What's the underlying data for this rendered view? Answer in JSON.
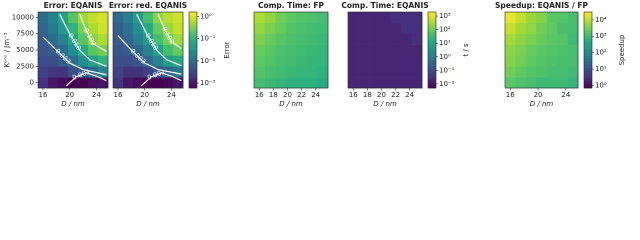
{
  "chart_data": [
    {
      "type": "heatmap",
      "title": "Error: EQANIS",
      "xlabel": "D / nm",
      "ylabel": "Kᵉⁿˢ / Jm⁻³",
      "colormap": "viridis",
      "log_color": true,
      "x": [
        16,
        17.5,
        19,
        20.5,
        22,
        23.5,
        25
      ],
      "y": [
        0,
        1667,
        3333,
        5000,
        6667,
        8333,
        10000
      ],
      "xlim": [
        15.25,
        25.75
      ],
      "ylim": [
        -833,
        10833
      ],
      "clim": [
        0.0006,
        1.6
      ],
      "xticks": [
        16,
        20,
        24
      ],
      "yticks": [
        0,
        2500,
        5000,
        7500,
        10000
      ],
      "values": [
        [
          0.002,
          0.001,
          0.0008,
          0.0006,
          0.0006,
          0.0008,
          0.001
        ],
        [
          0.003,
          0.002,
          0.002,
          0.004,
          0.006,
          0.01,
          0.02
        ],
        [
          0.004,
          0.004,
          0.006,
          0.01,
          0.03,
          0.06,
          0.1
        ],
        [
          0.005,
          0.006,
          0.01,
          0.03,
          0.08,
          0.2,
          0.3
        ],
        [
          0.006,
          0.01,
          0.02,
          0.06,
          0.2,
          0.4,
          0.6
        ],
        [
          0.008,
          0.015,
          0.04,
          0.1,
          0.3,
          0.6,
          0.9
        ],
        [
          0.01,
          0.02,
          0.06,
          0.2,
          0.5,
          0.8,
          1
        ]
      ],
      "contours": [
        {
          "level": {
            "value": 0.1,
            "label": "0.100"
          },
          "x": [
            21.5,
            22.5,
            23.5,
            25.5
          ],
          "y": [
            10500,
            8000,
            6000,
            4800
          ]
        },
        {
          "level": {
            "value": 0.01,
            "label": "0.010"
          },
          "x": [
            18.5,
            20,
            21.5,
            23,
            25.5
          ],
          "y": [
            10500,
            7500,
            5000,
            3500,
            2500
          ]
        },
        {
          "level": {
            "value": 0.003,
            "label": "0.003"
          },
          "x": [
            16,
            18,
            20,
            22,
            25.5
          ],
          "y": [
            7000,
            5000,
            3000,
            2000,
            1200
          ]
        },
        {
          "level": {
            "value": 0.001,
            "label": "0.001"
          },
          "x": [
            19.5,
            21,
            22.5,
            24,
            25.5
          ],
          "y": [
            -500,
            900,
            1500,
            1000,
            300
          ]
        }
      ]
    },
    {
      "type": "heatmap",
      "title": "Error: red. EQANIS",
      "xlabel": "D / nm",
      "colormap": "viridis",
      "log_color": true,
      "x": [
        16,
        17.5,
        19,
        20.5,
        22,
        23.5,
        25
      ],
      "y": [
        0,
        1667,
        3333,
        5000,
        6667,
        8333,
        10000
      ],
      "xlim": [
        15.25,
        25.75
      ],
      "ylim": [
        -833,
        10833
      ],
      "clim": [
        0.0006,
        1.6
      ],
      "xticks": [
        16,
        20,
        24
      ],
      "values": [
        [
          0.002,
          0.001,
          0.0008,
          0.0006,
          0.0006,
          0.0007,
          0.0009
        ],
        [
          0.003,
          0.002,
          0.002,
          0.003,
          0.005,
          0.008,
          0.015
        ],
        [
          0.004,
          0.004,
          0.005,
          0.009,
          0.02,
          0.05,
          0.08
        ],
        [
          0.005,
          0.006,
          0.009,
          0.02,
          0.06,
          0.15,
          0.25
        ],
        [
          0.006,
          0.009,
          0.02,
          0.05,
          0.15,
          0.3,
          0.5
        ],
        [
          0.007,
          0.012,
          0.03,
          0.08,
          0.25,
          0.5,
          0.8
        ],
        [
          0.009,
          0.018,
          0.05,
          0.15,
          0.4,
          0.7,
          0.9
        ]
      ],
      "contours": [
        {
          "level": {
            "value": 0.1,
            "label": "0.100"
          },
          "x": [
            22,
            23,
            24,
            25.5
          ],
          "y": [
            10500,
            8200,
            6300,
            5200
          ]
        },
        {
          "level": {
            "value": 0.01,
            "label": "0.010"
          },
          "x": [
            18.8,
            20.3,
            21.8,
            23.3,
            25.5
          ],
          "y": [
            10500,
            7500,
            5000,
            3500,
            2600
          ]
        },
        {
          "level": {
            "value": 0.003,
            "label": "0.003"
          },
          "x": [
            16,
            18,
            20,
            22,
            25.5
          ],
          "y": [
            7200,
            5000,
            3000,
            2000,
            1300
          ]
        },
        {
          "level": {
            "value": 0.001,
            "label": "0.001"
          },
          "x": [
            19.5,
            21,
            22.5,
            24,
            25.5
          ],
          "y": [
            -500,
            900,
            1500,
            1000,
            300
          ]
        }
      ],
      "colorbar": {
        "label": "Error",
        "ticks": [
          {
            "value": 1,
            "label": "10⁰"
          },
          {
            "value": 0.1,
            "label": "10⁻¹"
          },
          {
            "value": 0.01,
            "label": "10⁻²"
          },
          {
            "value": 0.001,
            "label": "10⁻³"
          }
        ]
      }
    },
    {
      "type": "heatmap",
      "title": "Comp. Time: FP",
      "xlabel": "D / nm",
      "colormap": "viridis",
      "log_color": true,
      "x": [
        16,
        17.5,
        19,
        20.5,
        22,
        23.5,
        25
      ],
      "y": [
        0,
        1667,
        3333,
        5000,
        6667,
        8333,
        10000
      ],
      "xlim": [
        15.25,
        25.75
      ],
      "ylim": [
        -833,
        10833
      ],
      "clim": [
        0.005,
        2000
      ],
      "xticks": [
        16,
        18,
        20,
        22,
        24
      ],
      "values": [
        [
          40,
          30,
          25,
          20,
          20,
          20,
          15
        ],
        [
          60,
          45,
          35,
          30,
          25,
          25,
          20
        ],
        [
          80,
          60,
          45,
          35,
          30,
          25,
          25
        ],
        [
          100,
          70,
          50,
          40,
          35,
          30,
          25
        ],
        [
          150,
          100,
          70,
          50,
          40,
          35,
          30
        ],
        [
          250,
          150,
          100,
          60,
          45,
          40,
          35
        ],
        [
          400,
          250,
          120,
          80,
          60,
          50,
          40
        ]
      ]
    },
    {
      "type": "heatmap",
      "title": "Comp. Time: EQANIS",
      "xlabel": "D / nm",
      "colormap": "viridis",
      "log_color": true,
      "x": [
        16,
        17.5,
        19,
        20.5,
        22,
        23.5,
        25
      ],
      "y": [
        0,
        1667,
        3333,
        5000,
        6667,
        8333,
        10000
      ],
      "xlim": [
        15.25,
        25.75
      ],
      "ylim": [
        -833,
        10833
      ],
      "clim": [
        0.005,
        2000
      ],
      "xticks": [
        16,
        18,
        20,
        22,
        24
      ],
      "values": [
        [
          0.02,
          0.02,
          0.02,
          0.02,
          0.02,
          0.02,
          0.02
        ],
        [
          0.02,
          0.02,
          0.02,
          0.02,
          0.02,
          0.02,
          0.02
        ],
        [
          0.02,
          0.02,
          0.02,
          0.02,
          0.02,
          0.02,
          0.02
        ],
        [
          0.02,
          0.02,
          0.02,
          0.02,
          0.02,
          0.02,
          0.02
        ],
        [
          0.02,
          0.02,
          0.02,
          0.02,
          0.02,
          0.02,
          0.03
        ],
        [
          0.02,
          0.02,
          0.02,
          0.02,
          0.02,
          0.03,
          0.03
        ],
        [
          0.02,
          0.02,
          0.02,
          0.02,
          0.03,
          0.03,
          0.03
        ]
      ],
      "colorbar": {
        "label": "t / s",
        "ticks": [
          {
            "value": 1000,
            "label": "10³"
          },
          {
            "value": 100,
            "label": "10²"
          },
          {
            "value": 10,
            "label": "10¹"
          },
          {
            "value": 1,
            "label": "10⁰"
          },
          {
            "value": 0.1,
            "label": "10⁻¹"
          },
          {
            "value": 0.01,
            "label": "10⁻²"
          }
        ]
      }
    },
    {
      "type": "heatmap",
      "title": "Speedup: EQANIS / FP",
      "xlabel": "D / nm",
      "colormap": "viridis",
      "log_color": true,
      "x": [
        16,
        17.5,
        19,
        20.5,
        22,
        23.5,
        25
      ],
      "y": [
        0,
        1667,
        3333,
        5000,
        6667,
        8333,
        10000
      ],
      "xlim": [
        15.25,
        25.75
      ],
      "ylim": [
        -833,
        10833
      ],
      "clim": [
        0.7,
        30000
      ],
      "xticks": [
        16,
        20,
        24
      ],
      "values": [
        [
          2000,
          1500,
          1200,
          1000,
          1000,
          1000,
          800
        ],
        [
          3000,
          2200,
          1700,
          1500,
          1200,
          1200,
          1000
        ],
        [
          4000,
          3000,
          2200,
          1700,
          1500,
          1200,
          1200
        ],
        [
          5000,
          3500,
          2500,
          2000,
          1700,
          1500,
          1200
        ],
        [
          7000,
          5000,
          3500,
          2500,
          2000,
          1700,
          1000
        ],
        [
          12000,
          7000,
          5000,
          3000,
          2200,
          1300,
          1200
        ],
        [
          20000,
          12000,
          6000,
          4000,
          2000,
          1700,
          1300
        ]
      ],
      "colorbar": {
        "label": "Speedup",
        "ticks": [
          {
            "value": 10000,
            "label": "10⁴"
          },
          {
            "value": 1000,
            "label": "10³"
          },
          {
            "value": 100,
            "label": "10²"
          },
          {
            "value": 10,
            "label": "10¹"
          },
          {
            "value": 1,
            "label": "10⁰"
          }
        ]
      }
    }
  ]
}
